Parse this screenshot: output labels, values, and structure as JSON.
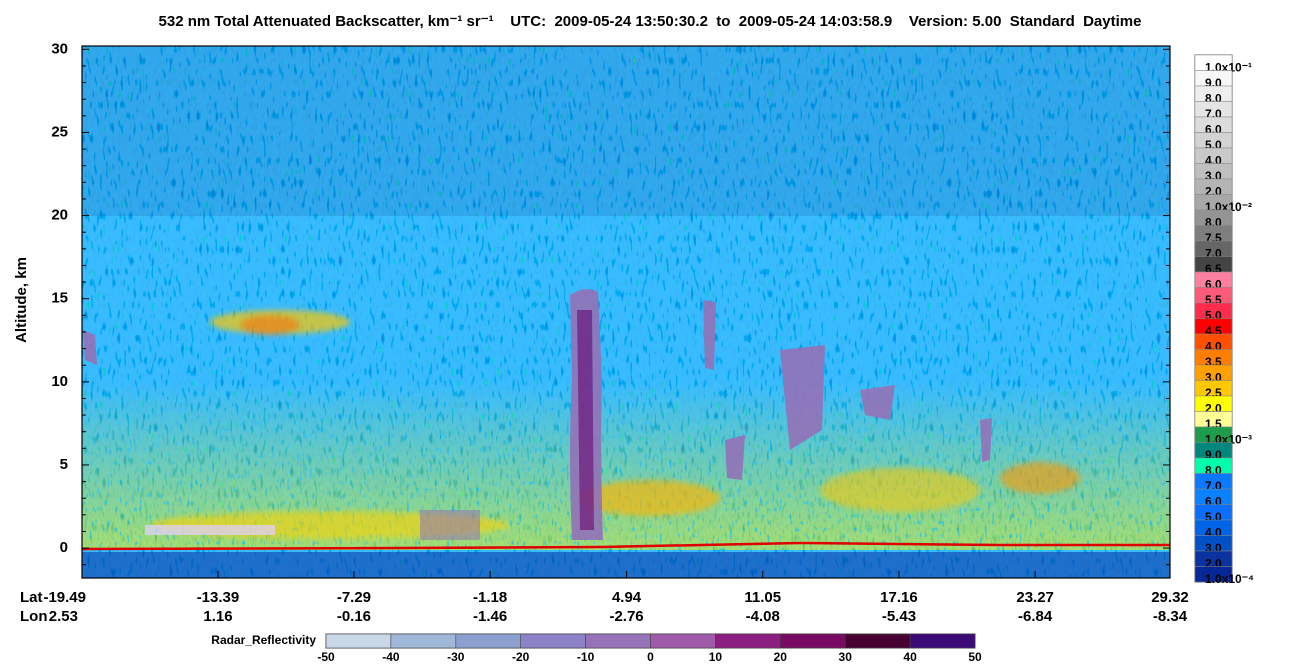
{
  "chart_data": {
    "type": "heatmap",
    "title": "532 nm Total Attenuated Backscatter, km⁻¹ sr⁻¹    UTC:  2009-05-24 13:50:30.2  to  2009-05-24 14:03:58.9    Version: 5.00  Standard  Daytime",
    "ylabel": "Altitude, km",
    "ylim": [
      -1.8,
      30.2
    ],
    "yticks": [
      0,
      5,
      10,
      15,
      20,
      25,
      30
    ],
    "xlim": [
      -19.49,
      29.32
    ],
    "xticks": [
      -19.49,
      -13.39,
      -7.29,
      -1.18,
      4.94,
      11.05,
      17.16,
      23.27,
      29.32
    ],
    "lat_row_label": "Lat",
    "lon_row_label": "Lon",
    "lon_labels": [
      2.53,
      1.16,
      -0.16,
      -1.46,
      -2.76,
      -4.08,
      -5.43,
      -6.84,
      -8.34
    ],
    "colorbar": [
      {
        "label": "1.0x10⁻¹",
        "color": "#ffffff"
      },
      {
        "label": "9.0",
        "color": "#f7f7f7"
      },
      {
        "label": "8.0",
        "color": "#eeeeee"
      },
      {
        "label": "7.0",
        "color": "#e5e5e5"
      },
      {
        "label": "6.0",
        "color": "#dcdcdc"
      },
      {
        "label": "5.0",
        "color": "#d3d3d3"
      },
      {
        "label": "4.0",
        "color": "#c9c9c9"
      },
      {
        "label": "3.0",
        "color": "#bfbfbf"
      },
      {
        "label": "2.0",
        "color": "#b4b4b4"
      },
      {
        "label": "1.0x10⁻²",
        "color": "#a8a8a8"
      },
      {
        "label": "8.0",
        "color": "#949494"
      },
      {
        "label": "7.5",
        "color": "#7e7e7e"
      },
      {
        "label": "7.0",
        "color": "#666666"
      },
      {
        "label": "6.5",
        "color": "#444444"
      },
      {
        "label": "6.0",
        "color": "#ff7fa0"
      },
      {
        "label": "5.5",
        "color": "#ff5a78"
      },
      {
        "label": "5.0",
        "color": "#ff2d4b"
      },
      {
        "label": "4.5",
        "color": "#ff0000"
      },
      {
        "label": "4.0",
        "color": "#ff5000"
      },
      {
        "label": "3.5",
        "color": "#ff7d00"
      },
      {
        "label": "3.0",
        "color": "#ffa000"
      },
      {
        "label": "2.5",
        "color": "#ffc800"
      },
      {
        "label": "2.0",
        "color": "#ffff00"
      },
      {
        "label": "1.5",
        "color": "#ffff96"
      },
      {
        "label": "1.0x10⁻³",
        "color": "#1e9b4b"
      },
      {
        "label": "9.0",
        "color": "#00877d"
      },
      {
        "label": "8.0",
        "color": "#00ffaa"
      },
      {
        "label": "7.0",
        "color": "#0a78ff"
      },
      {
        "label": "6.0",
        "color": "#0a82ff"
      },
      {
        "label": "5.0",
        "color": "#0a6eff"
      },
      {
        "label": "4.0",
        "color": "#0064e6"
      },
      {
        "label": "3.0",
        "color": "#0050c8"
      },
      {
        "label": "2.0",
        "color": "#0a32a0"
      },
      {
        "label": "1.0x10⁻⁴",
        "color": "#052896"
      }
    ],
    "radar": {
      "label": "Radar_Reflectivity",
      "ticks": [
        -50,
        -40,
        -30,
        -20,
        -10,
        0,
        10,
        20,
        30,
        40,
        50
      ],
      "colors": [
        "#c8d8e8",
        "#a0b8d8",
        "#8ca0d0",
        "#8c82c8",
        "#9673b9",
        "#a05aaa",
        "#8c1e82",
        "#780a64",
        "#460032",
        "#3c0a78"
      ]
    }
  }
}
